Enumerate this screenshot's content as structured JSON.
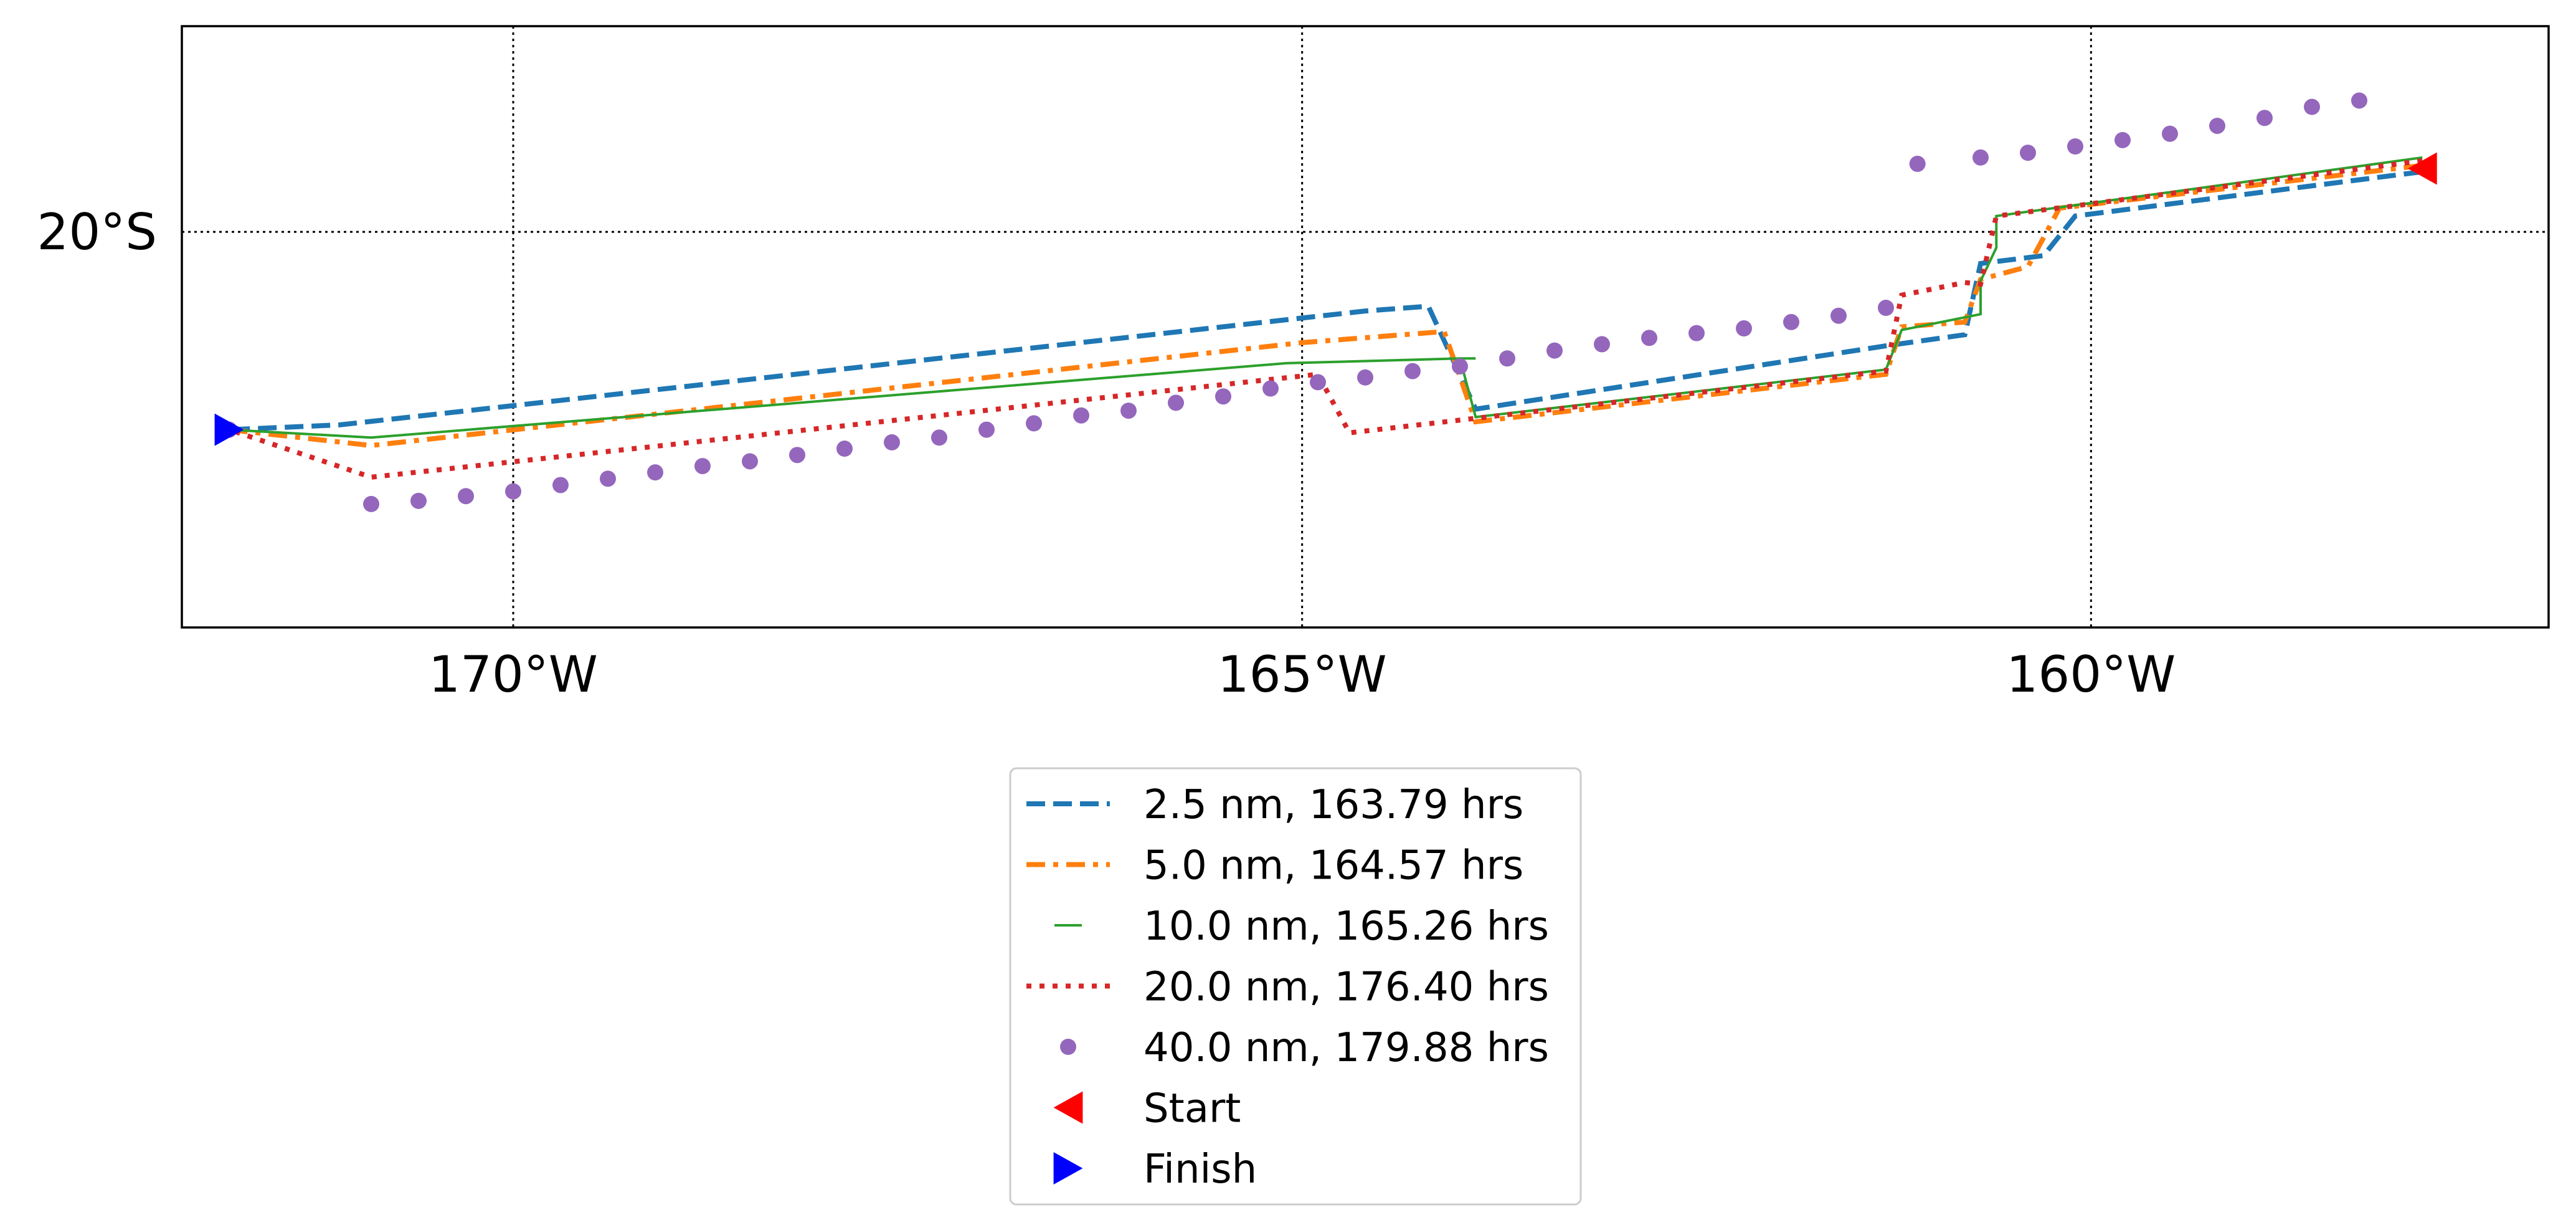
{
  "chart_data": {
    "type": "line",
    "title": "",
    "xlabel": "",
    "ylabel": "",
    "xlim": [
      -172.1,
      -157.1
    ],
    "ylim": [
      -22.5,
      -18.7
    ],
    "grid": true,
    "grid_style": "dotted",
    "x_ticks": [
      {
        "value": -170,
        "label": "170°W"
      },
      {
        "value": -165,
        "label": "165°W"
      },
      {
        "value": -160,
        "label": "160°W"
      }
    ],
    "y_ticks": [
      {
        "value": -20,
        "label": "20°S"
      }
    ],
    "legend_position": "below",
    "series": [
      {
        "name": "2.5 nm, 163.79 hrs",
        "color": "#1f77b4",
        "style": "dashed",
        "points": [
          [
            -157.9,
            -19.62
          ],
          [
            -160.1,
            -19.9
          ],
          [
            -160.3,
            -20.15
          ],
          [
            -160.7,
            -20.2
          ],
          [
            -160.8,
            -20.65
          ],
          [
            -161.3,
            -20.72
          ],
          [
            -163.9,
            -21.12
          ],
          [
            -164.2,
            -20.47
          ],
          [
            -164.6,
            -20.5
          ],
          [
            -171.1,
            -21.22
          ],
          [
            -171.8,
            -21.25
          ]
        ]
      },
      {
        "name": "5.0 nm, 164.57 hrs",
        "color": "#ff7f0e",
        "style": "dashdot",
        "points": [
          [
            -157.9,
            -19.58
          ],
          [
            -160.2,
            -19.85
          ],
          [
            -160.4,
            -20.22
          ],
          [
            -160.7,
            -20.3
          ],
          [
            -160.8,
            -20.57
          ],
          [
            -161.2,
            -20.6
          ],
          [
            -161.3,
            -20.9
          ],
          [
            -163.9,
            -21.2
          ],
          [
            -164.1,
            -20.63
          ],
          [
            -165.0,
            -20.7
          ],
          [
            -170.9,
            -21.35
          ],
          [
            -171.8,
            -21.25
          ]
        ]
      },
      {
        "name": "10.0 nm, 165.26 hrs",
        "color": "#2ca02c",
        "style": "thin",
        "points": [
          [
            -157.9,
            -19.53
          ],
          [
            -160.6,
            -19.9
          ],
          [
            -160.6,
            -20.1
          ],
          [
            -160.7,
            -20.31
          ],
          [
            -160.7,
            -20.52
          ],
          [
            -161.2,
            -20.62
          ],
          [
            -161.3,
            -20.87
          ],
          [
            -163.9,
            -21.17
          ],
          [
            -164.0,
            -20.8
          ],
          [
            -163.9,
            -20.8
          ],
          [
            -164.0,
            -20.8
          ],
          [
            -165.1,
            -20.83
          ],
          [
            -170.9,
            -21.3
          ],
          [
            -171.8,
            -21.25
          ]
        ]
      },
      {
        "name": "20.0 nm, 176.40 hrs",
        "color": "#d62728",
        "style": "dotted",
        "points": [
          [
            -157.9,
            -19.55
          ],
          [
            -160.6,
            -19.9
          ],
          [
            -160.7,
            -20.33
          ],
          [
            -160.8,
            -20.32
          ],
          [
            -161.2,
            -20.4
          ],
          [
            -161.3,
            -20.88
          ],
          [
            -164.7,
            -21.27
          ],
          [
            -164.9,
            -20.9
          ],
          [
            -170.9,
            -21.55
          ],
          [
            -171.8,
            -21.25
          ]
        ]
      },
      {
        "name": "40.0 nm, 179.88 hrs",
        "color": "#9467bd",
        "style": "circles",
        "points": [
          [
            -158.3,
            -19.17
          ],
          [
            -158.6,
            -19.21
          ],
          [
            -158.9,
            -19.28
          ],
          [
            -159.2,
            -19.33
          ],
          [
            -159.5,
            -19.38
          ],
          [
            -159.8,
            -19.42
          ],
          [
            -160.1,
            -19.46
          ],
          [
            -160.4,
            -19.5
          ],
          [
            -160.7,
            -19.53
          ],
          [
            -161.1,
            -19.57
          ],
          [
            -161.3,
            -20.48
          ],
          [
            -161.6,
            -20.53
          ],
          [
            -161.9,
            -20.57
          ],
          [
            -162.2,
            -20.61
          ],
          [
            -162.5,
            -20.64
          ],
          [
            -162.8,
            -20.67
          ],
          [
            -163.1,
            -20.71
          ],
          [
            -163.4,
            -20.75
          ],
          [
            -163.7,
            -20.8
          ],
          [
            -164.0,
            -20.85
          ],
          [
            -164.3,
            -20.88
          ],
          [
            -164.6,
            -20.92
          ],
          [
            -164.9,
            -20.95
          ],
          [
            -165.2,
            -20.99
          ],
          [
            -165.5,
            -21.04
          ],
          [
            -165.8,
            -21.08
          ],
          [
            -166.1,
            -21.13
          ],
          [
            -166.4,
            -21.16
          ],
          [
            -166.7,
            -21.21
          ],
          [
            -167.0,
            -21.25
          ],
          [
            -167.3,
            -21.3
          ],
          [
            -167.6,
            -21.33
          ],
          [
            -167.9,
            -21.37
          ],
          [
            -168.2,
            -21.41
          ],
          [
            -168.5,
            -21.45
          ],
          [
            -168.8,
            -21.48
          ],
          [
            -169.1,
            -21.52
          ],
          [
            -169.4,
            -21.56
          ],
          [
            -169.7,
            -21.6
          ],
          [
            -170.0,
            -21.64
          ],
          [
            -170.3,
            -21.67
          ],
          [
            -170.6,
            -21.7
          ],
          [
            -170.9,
            -21.72
          ],
          [
            -171.8,
            -21.25
          ]
        ]
      }
    ],
    "markers": [
      {
        "name": "Start",
        "color": "#ff0000",
        "shape": "triangle-left",
        "point": [
          -157.9,
          -19.6
        ]
      },
      {
        "name": "Finish",
        "color": "#0000ff",
        "shape": "triangle-right",
        "point": [
          -171.8,
          -21.25
        ]
      }
    ]
  }
}
